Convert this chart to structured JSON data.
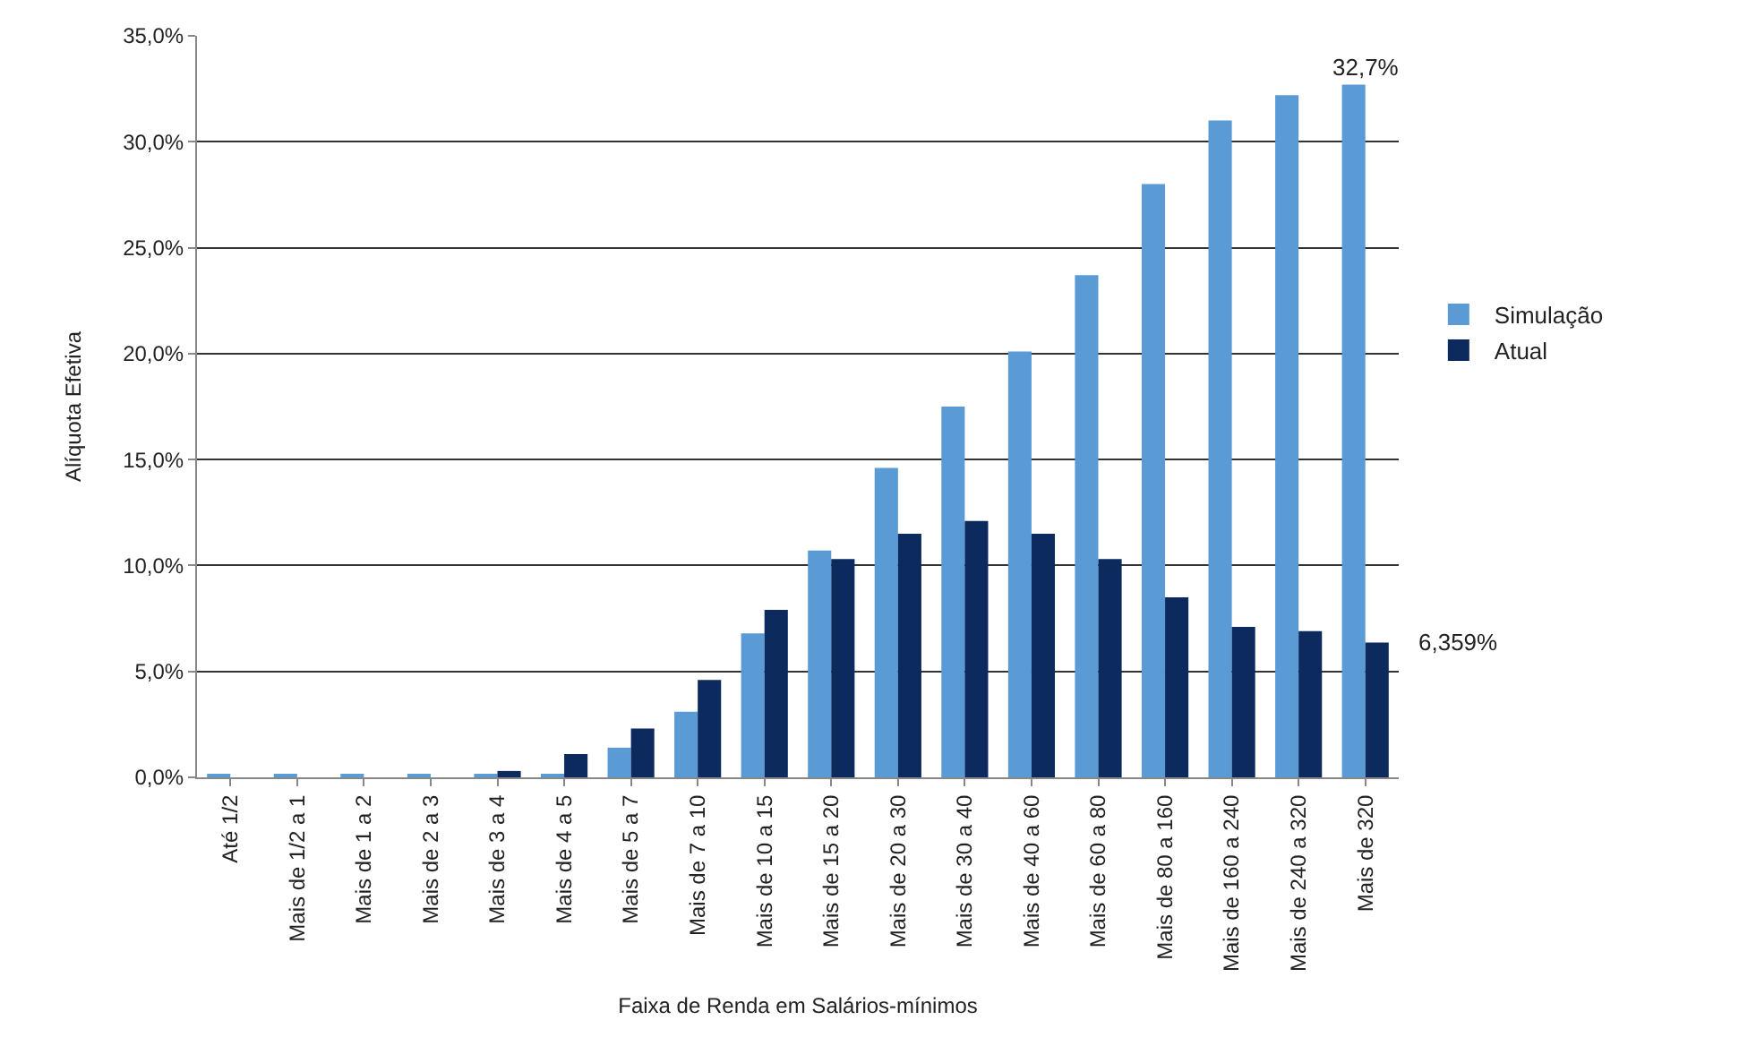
{
  "chart_data": {
    "type": "bar",
    "xlabel": "Faixa de Renda em Salários-mínimos",
    "ylabel": "Alíquota Efetiva",
    "categories": [
      "Até 1/2",
      "Mais de 1/2 a 1",
      "Mais de 1 a 2",
      "Mais de 2 a 3",
      "Mais de 3 a 4",
      "Mais de 4 a 5",
      "Mais de 5 a 7",
      "Mais de 7 a 10",
      "Mais de 10 a 15",
      "Mais de 15 a 20",
      "Mais de 20 a 30",
      "Mais de 30 a 40",
      "Mais de 40 a 60",
      "Mais de 60 a 80",
      "Mais de 80 a 160",
      "Mais de 160 a 240",
      "Mais de 240 a 320",
      "Mais de 320"
    ],
    "series": [
      {
        "name": "Simulação",
        "color": "#5b9bd5",
        "values": [
          0.1,
          0.1,
          0.1,
          0.1,
          0.1,
          0.1,
          1.4,
          3.1,
          6.8,
          10.7,
          14.6,
          17.5,
          20.1,
          23.7,
          28.0,
          31.0,
          32.2,
          32.7
        ]
      },
      {
        "name": "Atual",
        "color": "#0d2a5e",
        "values": [
          0,
          0,
          0,
          0,
          0.3,
          1.1,
          2.3,
          4.6,
          7.9,
          10.3,
          11.5,
          12.1,
          11.5,
          10.3,
          8.5,
          7.1,
          6.9,
          6.359
        ]
      }
    ],
    "ylim": [
      0,
      35
    ],
    "yticks": [
      {
        "value": 0,
        "label": "0,0%"
      },
      {
        "value": 5,
        "label": "5,0%"
      },
      {
        "value": 10,
        "label": "10,0%"
      },
      {
        "value": 15,
        "label": "15,0%"
      },
      {
        "value": 20,
        "label": "20,0%"
      },
      {
        "value": 25,
        "label": "25,0%"
      },
      {
        "value": 30,
        "label": "30,0%"
      },
      {
        "value": 35,
        "label": "35,0%"
      }
    ],
    "grid": "y",
    "legend": "right",
    "annotations": [
      {
        "text": "32,7%",
        "x": "Mais de 320",
        "y": 32.7
      },
      {
        "text": "6,359%",
        "x": "Mais de 320",
        "y": 6.359
      }
    ]
  }
}
